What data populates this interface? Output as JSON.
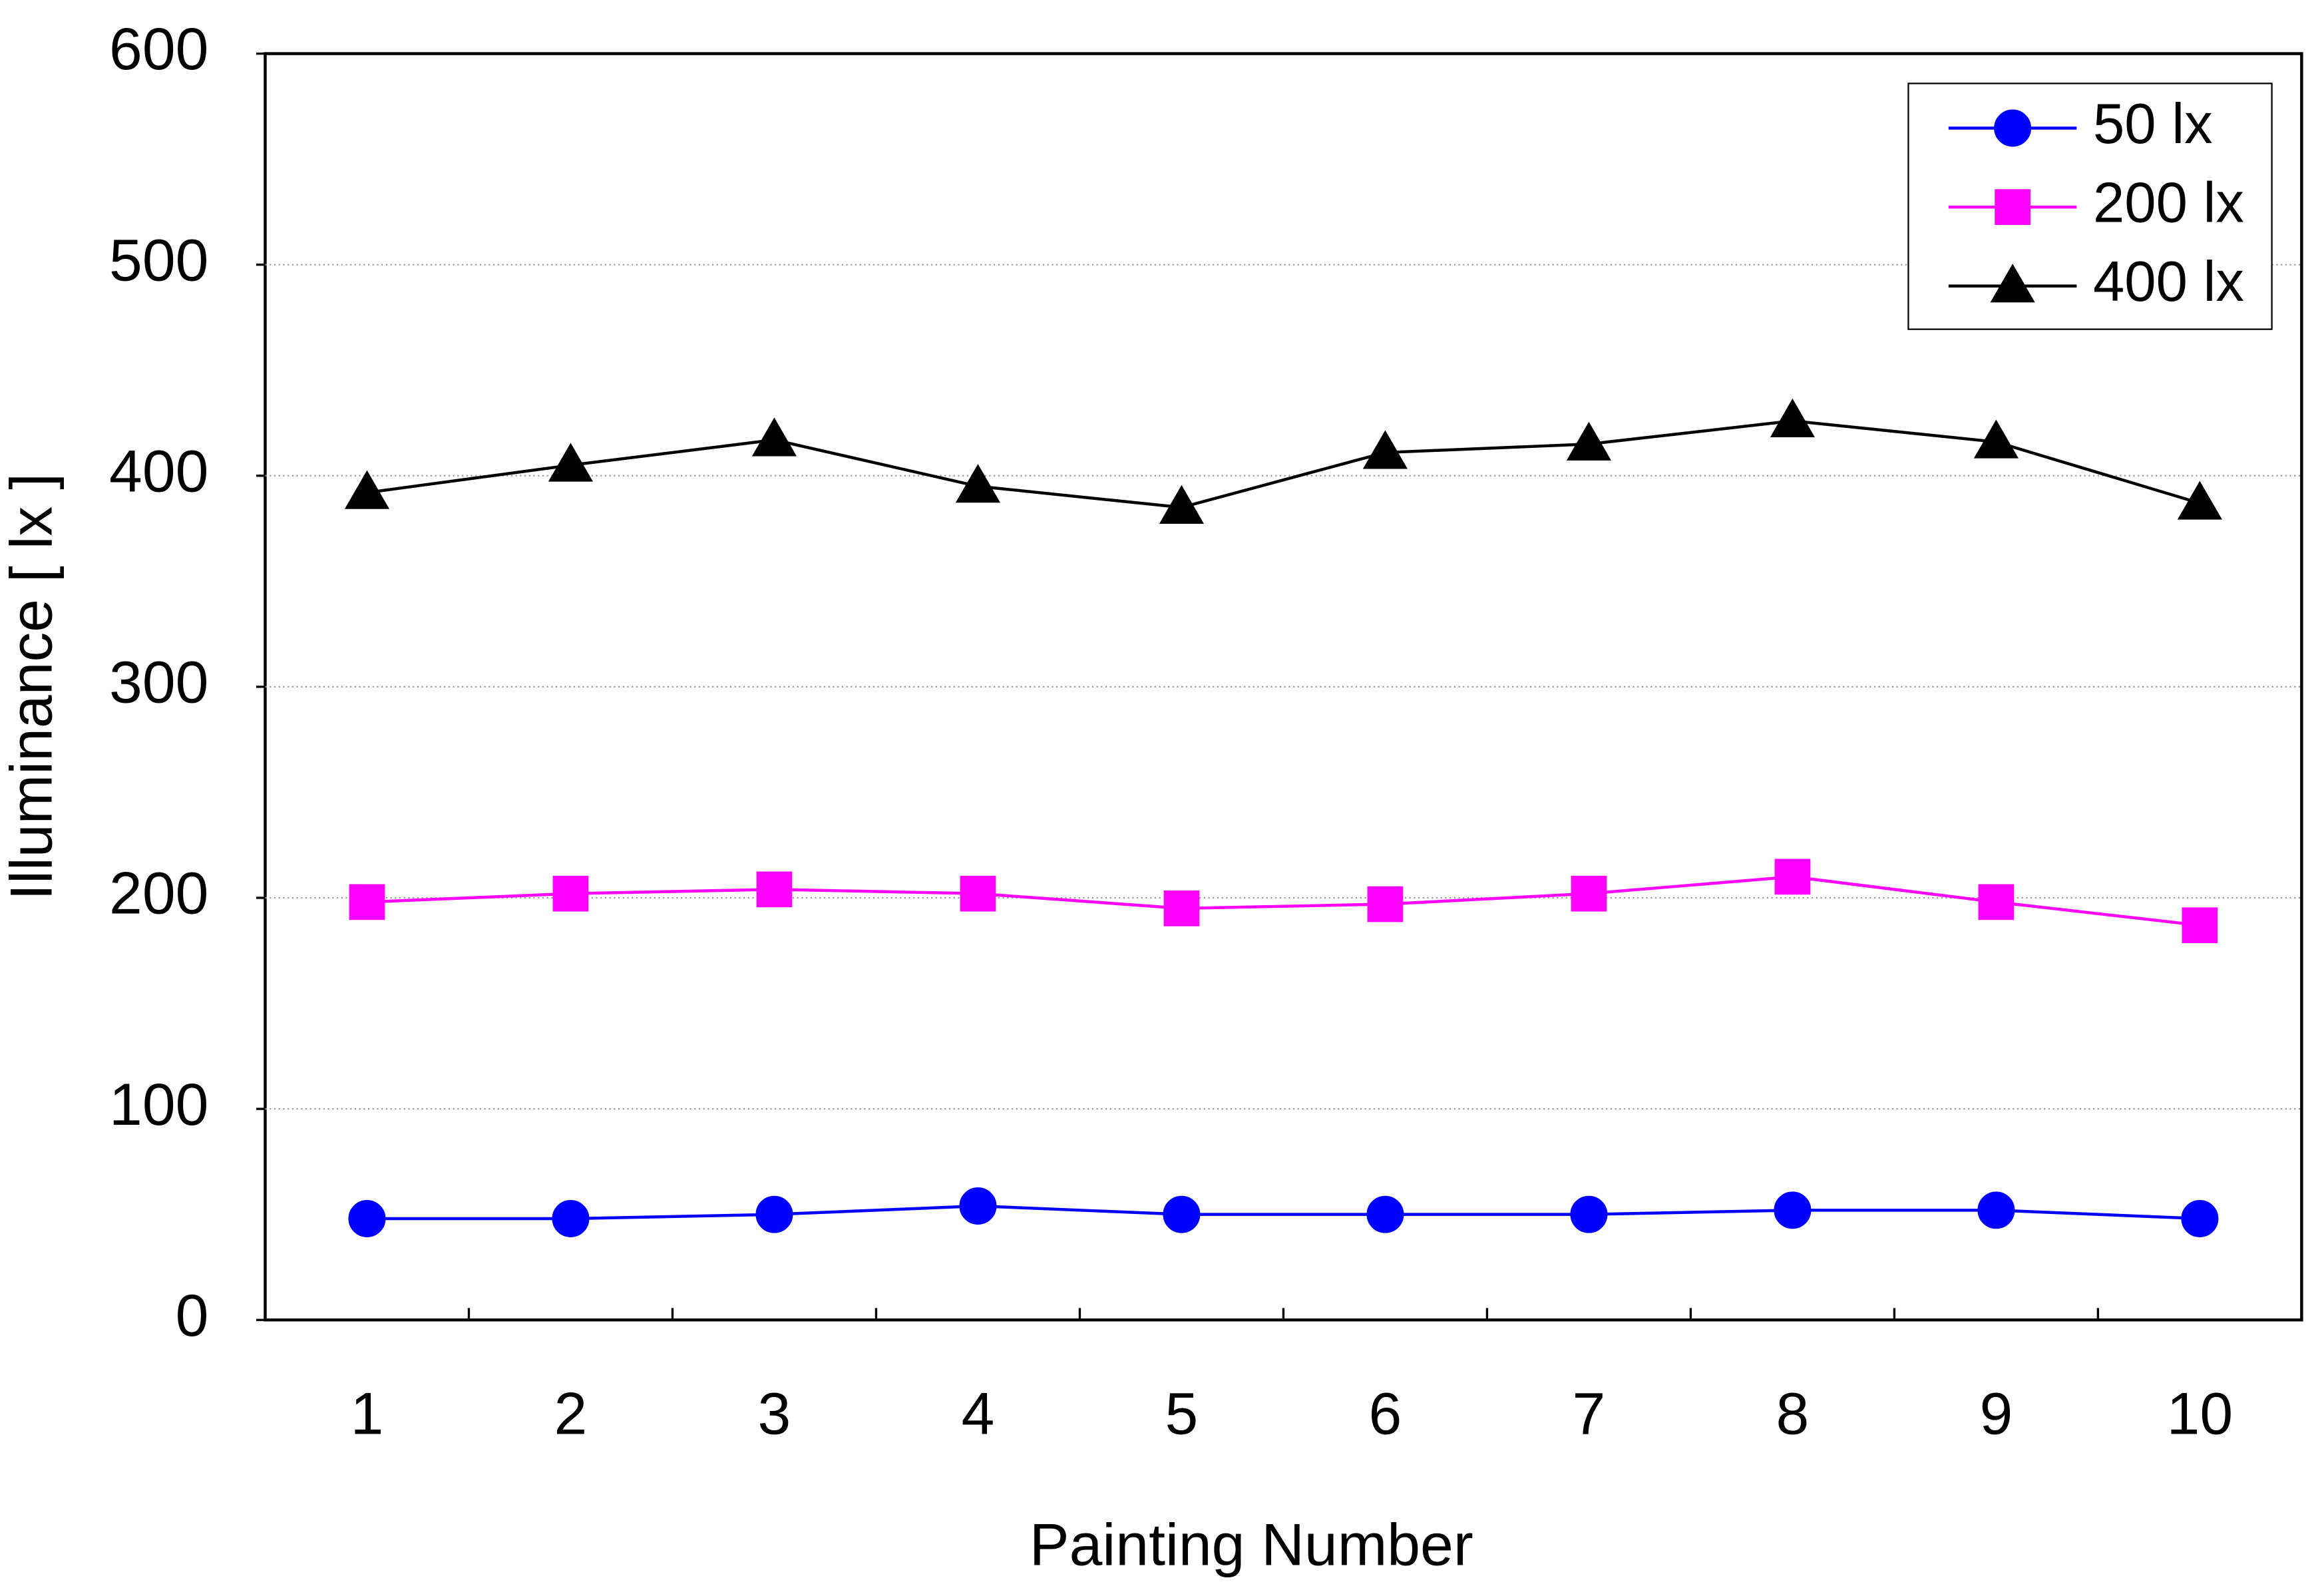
{
  "chart_data": {
    "type": "line",
    "x_label": "Painting Number",
    "y_label": "Illuminance [ lx ]",
    "categories": [
      "1",
      "2",
      "3",
      "4",
      "5",
      "6",
      "7",
      "8",
      "9",
      "10"
    ],
    "series": [
      {
        "name": "50 lx",
        "color": "#0000ff",
        "marker": "circle",
        "values": [
          48,
          48,
          50,
          54,
          50,
          50,
          50,
          52,
          52,
          48
        ]
      },
      {
        "name": "200 lx",
        "color": "#ff00ff",
        "marker": "square",
        "values": [
          198,
          202,
          204,
          202,
          195,
          197,
          202,
          210,
          198,
          187
        ]
      },
      {
        "name": "400 lx",
        "color": "#000000",
        "marker": "triangle",
        "values": [
          392,
          405,
          417,
          395,
          385,
          411,
          415,
          426,
          416,
          387
        ]
      }
    ],
    "ylim": [
      0,
      600
    ],
    "yticks": [
      0,
      100,
      200,
      300,
      400,
      500,
      600
    ],
    "grid": true,
    "legend": "upper right"
  }
}
